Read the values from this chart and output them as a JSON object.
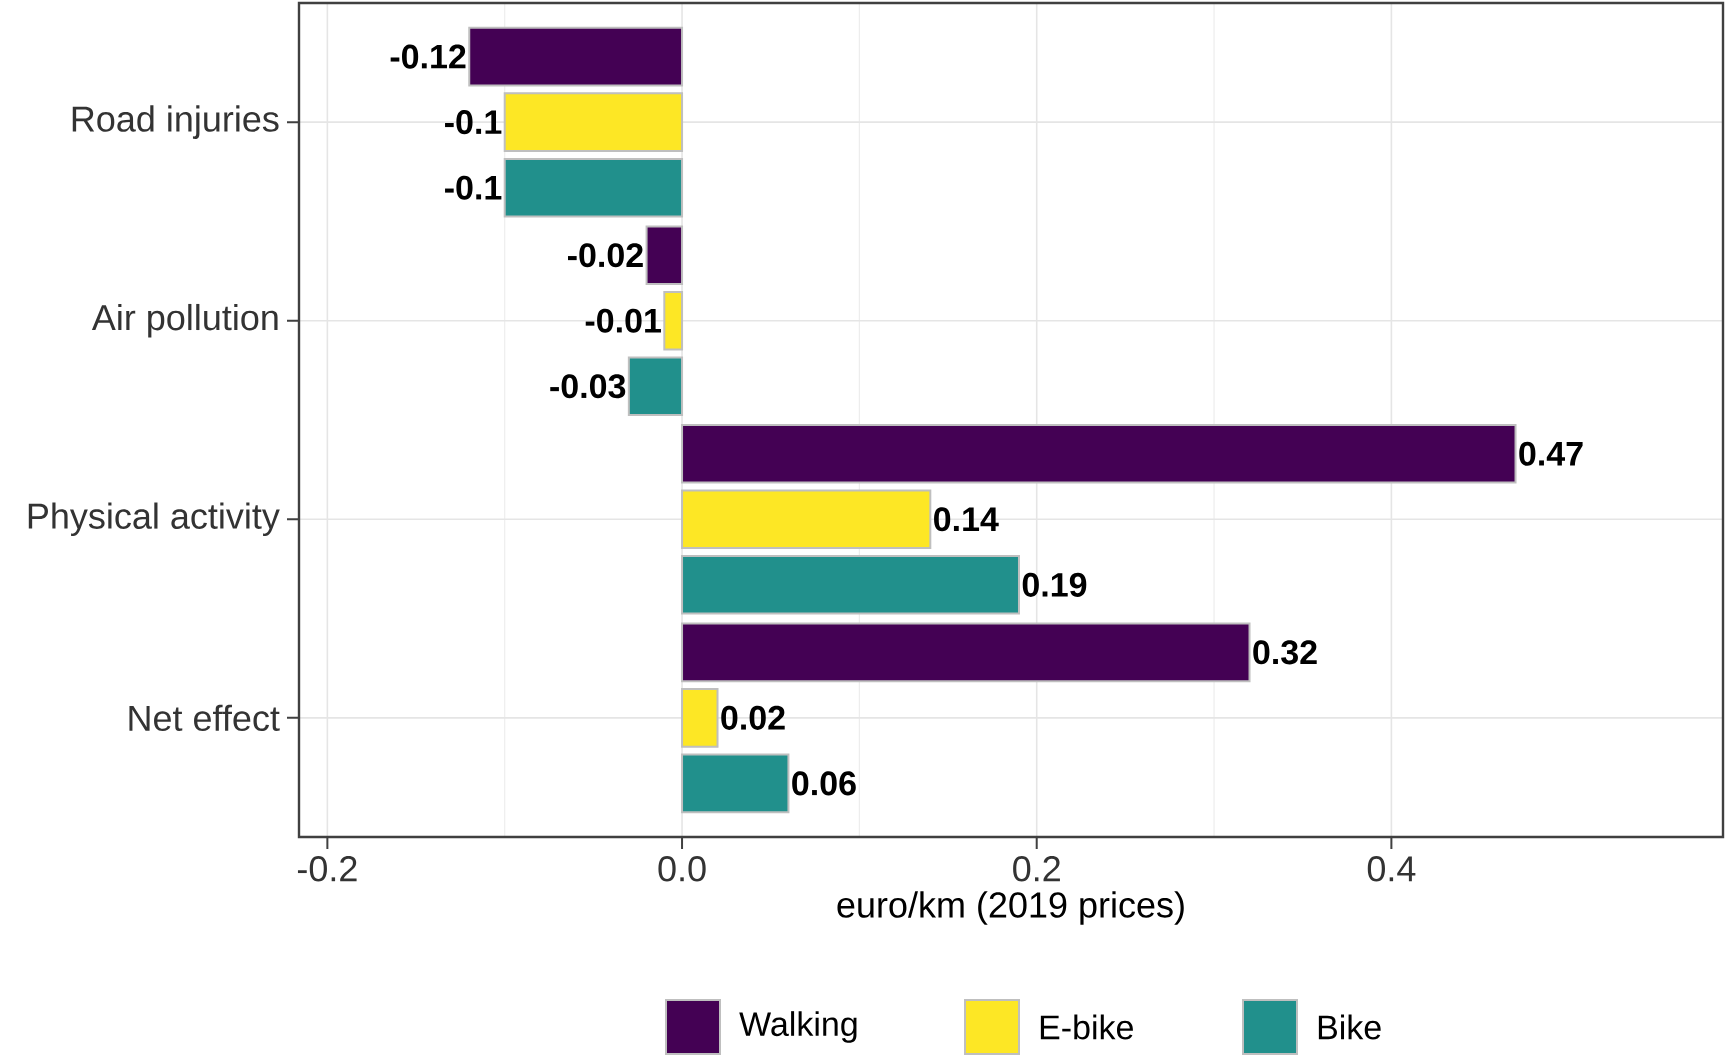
{
  "chart_data": {
    "type": "bar",
    "orientation": "horizontal",
    "xlabel": "euro/km (2019 prices)",
    "categories": [
      "Road injuries",
      "Air pollution",
      "Physical activity",
      "Net effect"
    ],
    "series": [
      {
        "name": "Walking",
        "color": "#440154",
        "values": [
          -0.12,
          -0.02,
          0.47,
          0.32
        ]
      },
      {
        "name": "E-bike",
        "color": "#fde725",
        "values": [
          -0.1,
          -0.01,
          0.14,
          0.02
        ]
      },
      {
        "name": "Bike",
        "color": "#21908c",
        "values": [
          -0.1,
          -0.03,
          0.19,
          0.06
        ]
      }
    ],
    "xlim": [
      -0.216,
      0.587
    ],
    "xticks": [
      -0.2,
      {
        "value": 0,
        "label": "0.0"
      },
      0.2,
      0.4
    ],
    "data_labels": true,
    "grid": true,
    "legend": "bottom"
  }
}
